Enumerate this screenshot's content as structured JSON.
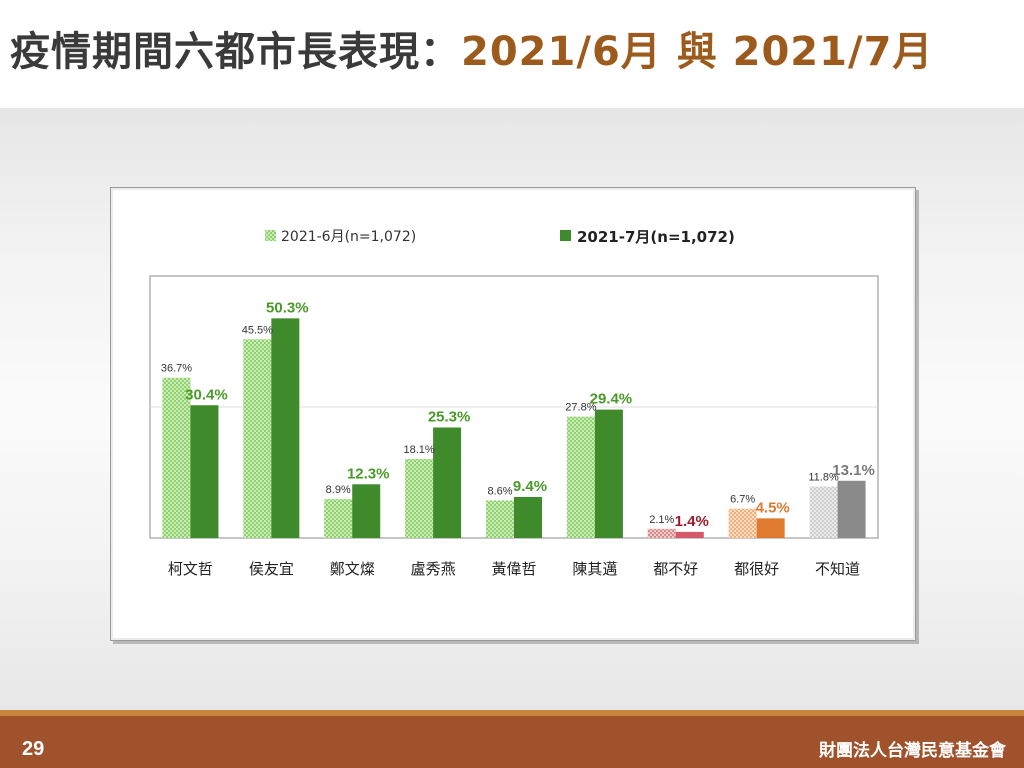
{
  "slide": {
    "title_main": "疫情期間六都市長表現：",
    "title_date1": "2021/6月",
    "title_sep": " 與 ",
    "title_date2": "2021/7月",
    "page_number": "29",
    "organization": "財團法人台灣民意基金會"
  },
  "colors": {
    "jun_green": "#8fd26a",
    "jul_green": "#3f8a2a",
    "label_green": "#4a9a2a",
    "bad_pattern": "#d98a8a",
    "bad_solid": "#d45a6a",
    "bad_label": "#a01a2a",
    "good_pattern": "#f0b27a",
    "good_solid": "#e07a30",
    "good_label": "#e07a30",
    "dk_pattern": "#cfcfcf",
    "dk_solid": "#8a8a8a",
    "dk_label": "#7a7a7a",
    "title_dark": "#3a3a3a",
    "title_accent": "#9c5b1c",
    "footer": "#a0522d"
  },
  "chart_data": {
    "type": "bar",
    "categories": [
      "柯文哲",
      "侯友宜",
      "鄭文燦",
      "盧秀燕",
      "黃偉哲",
      "陳其邁",
      "都不好",
      "都很好",
      "不知道"
    ],
    "series": [
      {
        "name": "2021-6月(n=1,072)",
        "values": [
          36.7,
          45.5,
          8.9,
          18.1,
          8.6,
          27.8,
          2.1,
          6.7,
          11.8
        ],
        "labels": [
          "36.7%",
          "45.5%",
          "8.9%",
          "18.1%",
          "8.6%",
          "27.8%",
          "2.1%",
          "6.7%",
          "11.8%"
        ]
      },
      {
        "name": "2021-7月(n=1,072)",
        "values": [
          30.4,
          50.3,
          12.3,
          25.3,
          9.4,
          29.4,
          1.4,
          4.5,
          13.1
        ],
        "labels": [
          "30.4%",
          "50.3%",
          "12.3%",
          "25.3%",
          "9.4%",
          "29.4%",
          "1.4%",
          "4.5%",
          "13.1%"
        ]
      }
    ],
    "ylim": [
      0,
      60
    ],
    "grid": "single line at 30",
    "legend": "top-center"
  }
}
